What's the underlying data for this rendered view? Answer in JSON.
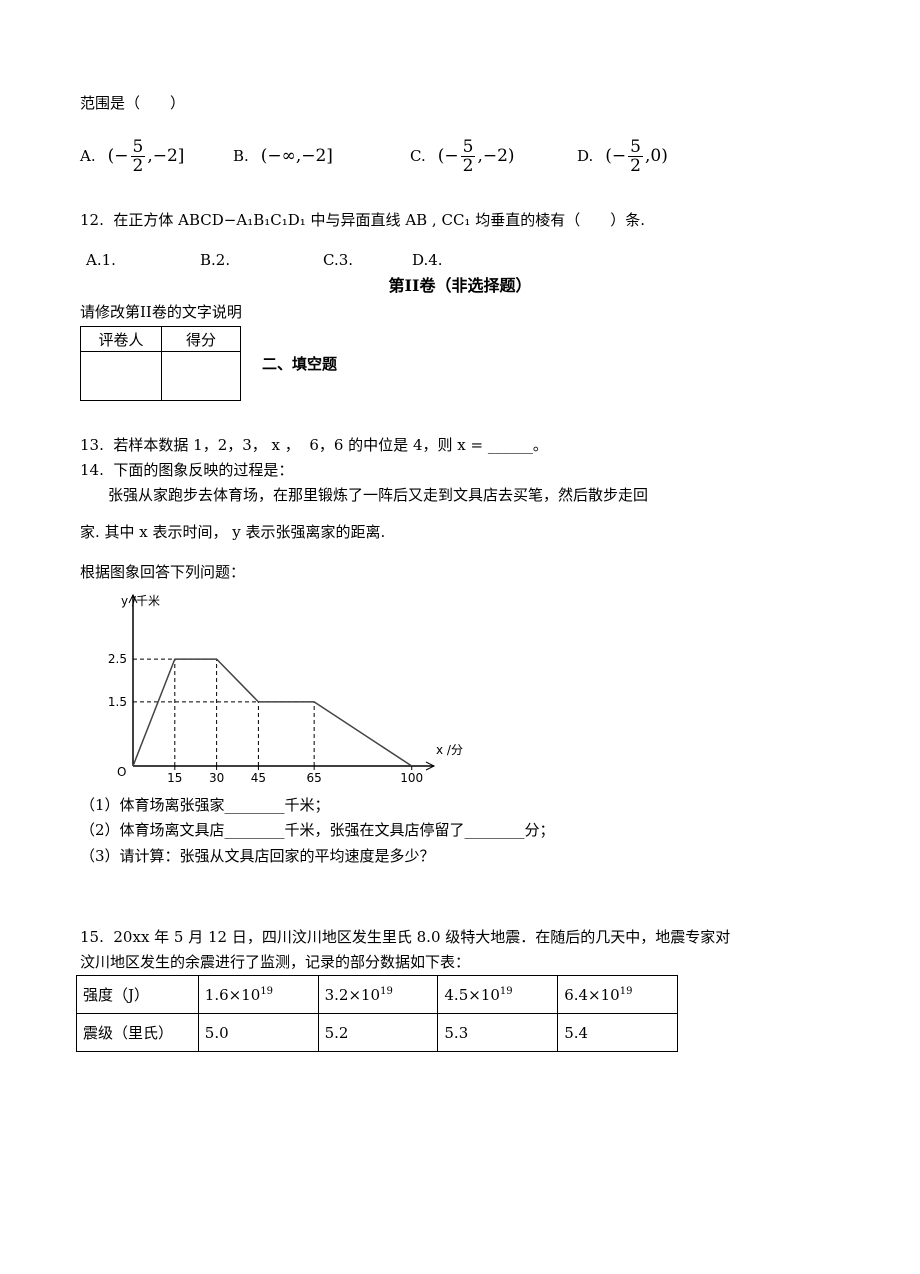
{
  "q11": {
    "stem_tail": "范围是（　　）",
    "options": [
      {
        "label": "A.",
        "left": "(−",
        "num": "5",
        "den": "2",
        "right": ",−2]"
      },
      {
        "label": "B.",
        "expr": "(−∞,−2]"
      },
      {
        "label": "C.",
        "left": "(−",
        "num": "5",
        "den": "2",
        "right": ",−2)"
      },
      {
        "label": "D.",
        "left": "(−",
        "num": "5",
        "den": "2",
        "right": ",0)"
      }
    ]
  },
  "q12": {
    "text": "12.  在正方体 ABCD−A₁B₁C₁D₁ 中与异面直线 AB , CC₁ 均垂直的棱有（　　）条.",
    "options": [
      "A.1.",
      "B.2.",
      "C.3.",
      "D.4."
    ]
  },
  "part2": {
    "title": "第II卷（非选择题）",
    "note": "请修改第II卷的文字说明",
    "score_table": {
      "headers": [
        "评卷人",
        "得分"
      ]
    },
    "section": "二、填空题"
  },
  "q13": {
    "text": "13.  若样本数据 1，2，3， x ，  6，6 的中位是 4，则 x = ______。"
  },
  "q14": {
    "intro": "14.  下面的图象反映的过程是：",
    "para": [
      "张强从家跑步去体育场，在那里锻炼了一阵后又走到文具店去买笔，然后散步走回",
      "家. 其中 x 表示时间， y 表示张强离家的距离."
    ],
    "prompt": "根据图象回答下列问题：",
    "chart": {
      "type": "line",
      "y_label": "y /千米",
      "x_label": "x /分",
      "origin": "O",
      "x": [
        0,
        15,
        30,
        45,
        65,
        100
      ],
      "values": [
        0,
        2.5,
        2.5,
        1.5,
        1.5,
        0
      ],
      "xlim": [
        0,
        108
      ],
      "ylim": [
        0,
        4
      ],
      "xticks": [
        15,
        30,
        45,
        65,
        100
      ],
      "yticks": [
        1.5,
        2.5
      ]
    },
    "subquestions": [
      "（1）体育场离张强家________千米；",
      "（2）体育场离文具店________千米，张强在文具店停留了________分；",
      "（3）请计算：张强从文具店回家的平均速度是多少？"
    ]
  },
  "q15": {
    "lines": [
      "15.  20xx 年 5 月 12 日，四川汶川地区发生里氏 8.0 级特大地震．在随后的几天中，地震专家对",
      "汶川地区发生的余震进行了监测，记录的部分数据如下表："
    ],
    "table": {
      "rows": [
        [
          "强度（J）",
          {
            "base": "1.6×10",
            "exp": "19"
          },
          {
            "base": "3.2×10",
            "exp": "19"
          },
          {
            "base": "4.5×10",
            "exp": "19"
          },
          {
            "base": "6.4×10",
            "exp": "19"
          }
        ],
        [
          "震级（里氏）",
          "5.0",
          "5.2",
          "5.3",
          "5.4"
        ]
      ]
    }
  }
}
